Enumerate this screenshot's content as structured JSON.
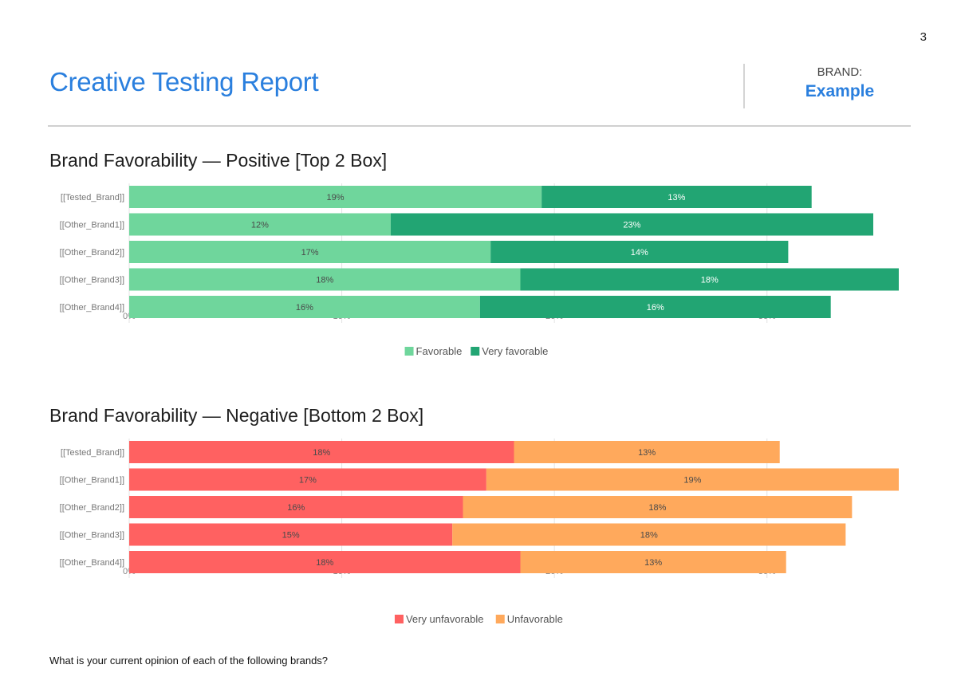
{
  "page_number": "3",
  "report_title": "Creative Testing Report",
  "brand": {
    "label": "BRAND:",
    "value": "Example"
  },
  "footnote": "What is your current opinion of each of the following brands?",
  "chart_data": [
    {
      "type": "bar",
      "orientation": "horizontal",
      "stacked": true,
      "title": "Brand Favorability — Positive [Top 2 Box]",
      "categories": [
        "[[Tested_Brand]]",
        "[[Other_Brand1]]",
        "[[Other_Brand2]]",
        "[[Other_Brand3]]",
        "[[Other_Brand4]]"
      ],
      "series": [
        {
          "name": "Favorable",
          "color": "#6fd69c",
          "label_color": "#4a4a4a",
          "values": [
            19.4,
            12.3,
            17.0,
            18.4,
            16.5
          ],
          "labels": [
            "19%",
            "12%",
            "17%",
            "18%",
            "16%"
          ]
        },
        {
          "name": "Very favorable",
          "color": "#22a573",
          "label_color": "#ffffff",
          "values": [
            12.7,
            22.7,
            14.0,
            17.8,
            16.5
          ],
          "labels": [
            "13%",
            "23%",
            "14%",
            "18%",
            "16%"
          ]
        }
      ],
      "xlim": [
        0,
        36.2
      ],
      "xticks": [
        0,
        10,
        20,
        30
      ],
      "xtick_labels": [
        "0%",
        "10%",
        "20%",
        "30%"
      ],
      "grid": true,
      "legend": "bottom"
    },
    {
      "type": "bar",
      "orientation": "horizontal",
      "stacked": true,
      "title": "Brand Favorability — Negative [Bottom 2 Box]",
      "categories": [
        "[[Tested_Brand]]",
        "[[Other_Brand1]]",
        "[[Other_Brand2]]",
        "[[Other_Brand3]]",
        "[[Other_Brand4]]"
      ],
      "series": [
        {
          "name": "Very unfavorable",
          "color": "#ff6161",
          "label_color": "#4a4a4a",
          "values": [
            18.1,
            16.8,
            15.7,
            15.2,
            18.4
          ],
          "labels": [
            "18%",
            "17%",
            "16%",
            "15%",
            "18%"
          ]
        },
        {
          "name": "Unfavorable",
          "color": "#ffa95c",
          "label_color": "#4a4a4a",
          "values": [
            12.5,
            19.4,
            18.3,
            18.5,
            12.5
          ],
          "labels": [
            "13%",
            "19%",
            "18%",
            "18%",
            "13%"
          ]
        }
      ],
      "xlim": [
        0,
        36.2
      ],
      "xticks": [
        0,
        10,
        20,
        30
      ],
      "xtick_labels": [
        "0%",
        "10%",
        "20%",
        "30%"
      ],
      "grid": true,
      "legend": "bottom"
    }
  ]
}
